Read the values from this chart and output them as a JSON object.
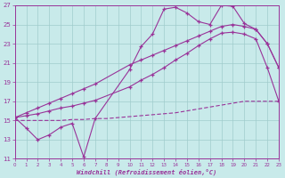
{
  "xlabel": "Windchill (Refroidissement éolien,°C)",
  "xlim": [
    0,
    23
  ],
  "ylim": [
    11,
    27
  ],
  "yticks": [
    11,
    13,
    15,
    17,
    19,
    21,
    23,
    25,
    27
  ],
  "xticks": [
    0,
    1,
    2,
    3,
    4,
    5,
    6,
    7,
    8,
    9,
    10,
    11,
    12,
    13,
    14,
    15,
    16,
    17,
    18,
    19,
    20,
    21,
    22,
    23
  ],
  "background_color": "#c8eaea",
  "grid_color": "#a0cccc",
  "line_color": "#993399",
  "line1_x": [
    0,
    1,
    2,
    3,
    4,
    5,
    6,
    7,
    10,
    11,
    12,
    13,
    14,
    15,
    16,
    17,
    18,
    19,
    20,
    21,
    22,
    23
  ],
  "line1_y": [
    15.3,
    14.2,
    13.0,
    13.5,
    14.3,
    14.7,
    11.2,
    15.2,
    20.3,
    22.7,
    24.0,
    26.6,
    26.8,
    26.2,
    25.3,
    25.0,
    27.0,
    26.9,
    25.1,
    24.5,
    23.0,
    20.5
  ],
  "line2_x": [
    0,
    1,
    2,
    3,
    4,
    5,
    6,
    7,
    10,
    11,
    12,
    13,
    14,
    15,
    16,
    17,
    18,
    19,
    20,
    21,
    22,
    23
  ],
  "line2_y": [
    15.3,
    15.8,
    16.3,
    16.8,
    17.3,
    17.8,
    18.3,
    18.8,
    20.8,
    21.3,
    21.8,
    22.3,
    22.8,
    23.3,
    23.8,
    24.3,
    24.8,
    25.0,
    24.8,
    24.5,
    23.0,
    20.5
  ],
  "line3_x": [
    0,
    1,
    2,
    3,
    4,
    5,
    6,
    7,
    10,
    11,
    12,
    13,
    14,
    15,
    16,
    17,
    18,
    19,
    20,
    21,
    22,
    23
  ],
  "line3_y": [
    15.3,
    15.5,
    15.7,
    16.0,
    16.3,
    16.5,
    16.8,
    17.1,
    18.5,
    19.2,
    19.8,
    20.5,
    21.3,
    22.0,
    22.8,
    23.5,
    24.1,
    24.2,
    24.0,
    23.5,
    20.5,
    17.0
  ],
  "line4_x": [
    0,
    1,
    2,
    3,
    4,
    5,
    6,
    7,
    8,
    9,
    10,
    11,
    12,
    13,
    14,
    15,
    16,
    17,
    18,
    19,
    20,
    21,
    22,
    23
  ],
  "line4_y": [
    15.0,
    15.0,
    15.0,
    15.0,
    15.0,
    15.1,
    15.1,
    15.2,
    15.2,
    15.3,
    15.4,
    15.5,
    15.6,
    15.7,
    15.8,
    16.0,
    16.2,
    16.4,
    16.6,
    16.8,
    17.0,
    17.0,
    17.0,
    17.0
  ]
}
